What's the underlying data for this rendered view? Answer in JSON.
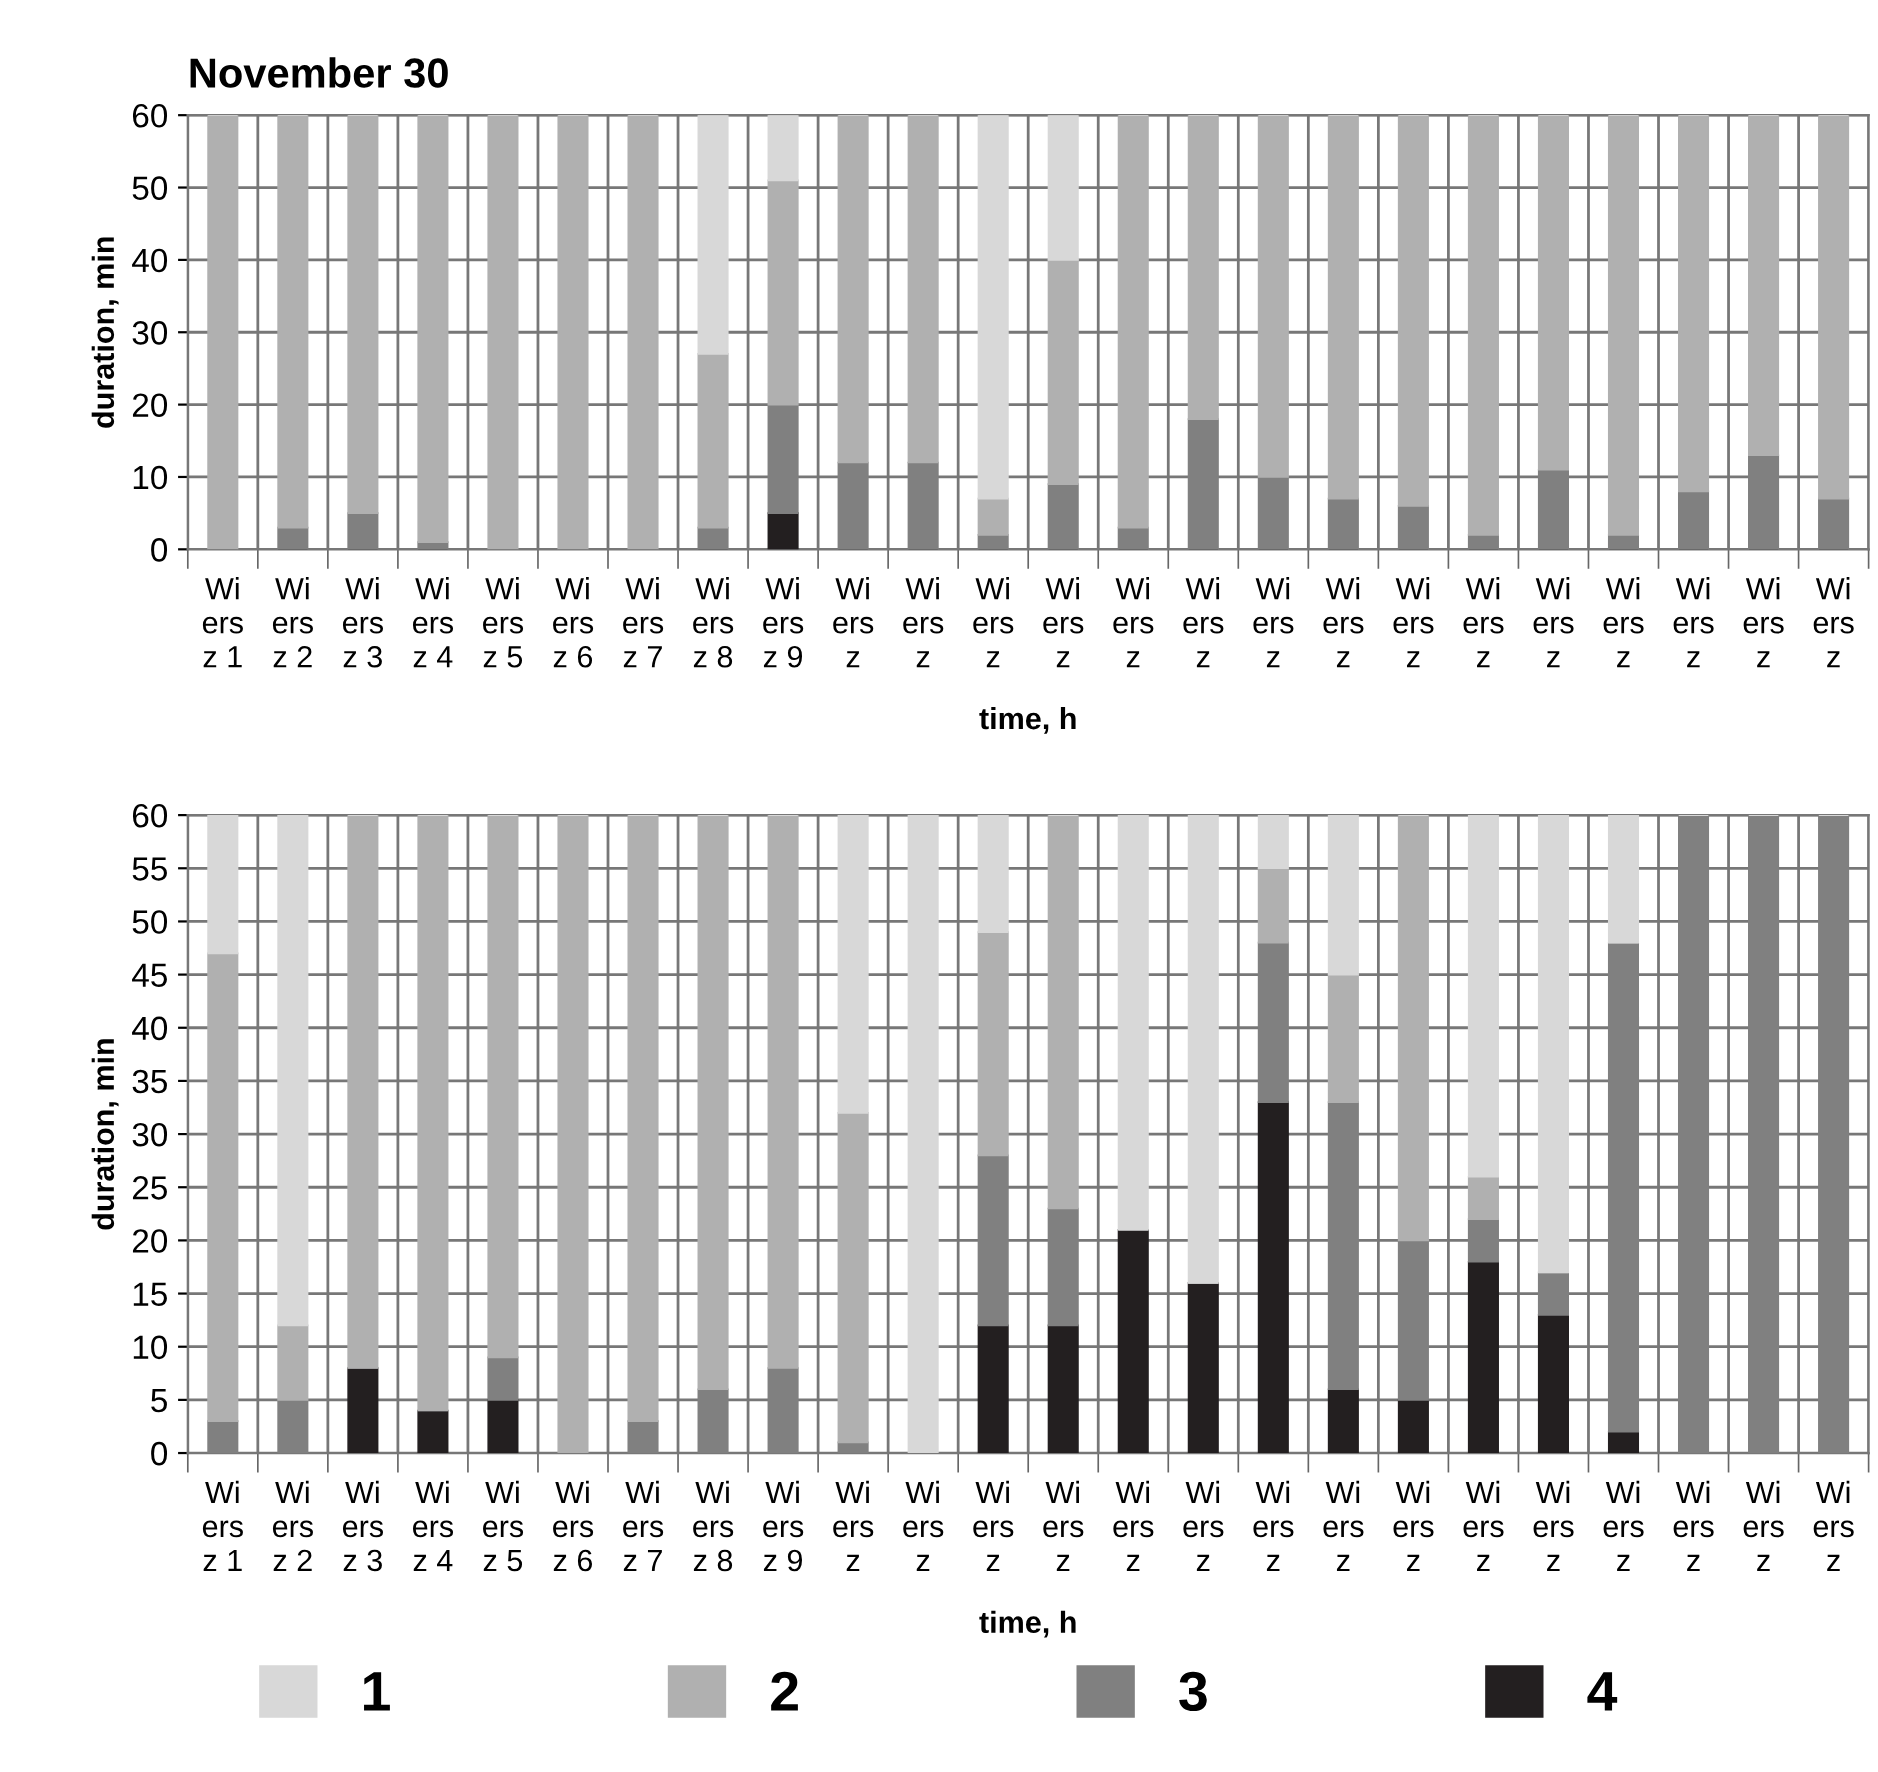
{
  "chart_data": [
    {
      "type": "bar",
      "title": "November 30",
      "xlabel": "time, h",
      "ylabel": "duration, min",
      "stacked": true,
      "grid": true,
      "legend": "bottom",
      "ylim": [
        0,
        60
      ],
      "yticks": [
        0,
        10,
        20,
        30,
        40,
        50,
        60
      ],
      "categories": [
        "Wi\ners\nz 1",
        "Wi\ners\nz 2",
        "Wi\ners\nz 3",
        "Wi\ners\nz 4",
        "Wi\ners\nz 5",
        "Wi\ners\nz 6",
        "Wi\ners\nz 7",
        "Wi\ners\nz 8",
        "Wi\ners\nz 9",
        "Wi\ners\nz",
        "Wi\ners\nz",
        "Wi\ners\nz",
        "Wi\ners\nz",
        "Wi\ners\nz",
        "Wi\ners\nz",
        "Wi\ners\nz",
        "Wi\ners\nz",
        "Wi\ners\nz",
        "Wi\ners\nz",
        "Wi\ners\nz",
        "Wi\ners\nz",
        "Wi\ners\nz",
        "Wi\ners\nz",
        "Wi\ners\nz"
      ],
      "series": [
        {
          "name": "4",
          "color": "#231f20",
          "values": [
            0,
            0,
            0,
            0,
            0,
            0,
            0,
            0,
            5,
            0,
            0,
            0,
            0,
            0,
            0,
            0,
            0,
            0,
            0,
            0,
            0,
            0,
            0,
            0
          ]
        },
        {
          "name": "3",
          "color": "#808080",
          "values": [
            0,
            3,
            5,
            1,
            0,
            0,
            0,
            3,
            15,
            12,
            12,
            2,
            9,
            3,
            18,
            10,
            7,
            6,
            2,
            11,
            2,
            8,
            13,
            7
          ]
        },
        {
          "name": "2",
          "color": "#b0b0b0",
          "values": [
            60,
            57,
            55,
            59,
            60,
            60,
            60,
            24,
            31,
            48,
            48,
            5,
            31,
            57,
            42,
            50,
            53,
            54,
            58,
            49,
            58,
            52,
            47,
            53
          ]
        },
        {
          "name": "1",
          "color": "#d8d8d8",
          "values": [
            0,
            0,
            0,
            0,
            0,
            0,
            0,
            33,
            9,
            0,
            0,
            53,
            20,
            0,
            0,
            0,
            0,
            0,
            0,
            0,
            0,
            0,
            0,
            0
          ]
        }
      ]
    },
    {
      "type": "bar",
      "xlabel": "time, h",
      "ylabel": "duration, min",
      "stacked": true,
      "grid": true,
      "legend": "bottom",
      "ylim": [
        0,
        60
      ],
      "yticks": [
        0,
        5,
        10,
        15,
        20,
        25,
        30,
        35,
        40,
        45,
        50,
        55,
        60
      ],
      "categories": [
        "Wi\ners\nz 1",
        "Wi\ners\nz 2",
        "Wi\ners\nz 3",
        "Wi\ners\nz 4",
        "Wi\ners\nz 5",
        "Wi\ners\nz 6",
        "Wi\ners\nz 7",
        "Wi\ners\nz 8",
        "Wi\ners\nz 9",
        "Wi\ners\nz",
        "Wi\ners\nz",
        "Wi\ners\nz",
        "Wi\ners\nz",
        "Wi\ners\nz",
        "Wi\ners\nz",
        "Wi\ners\nz",
        "Wi\ners\nz",
        "Wi\ners\nz",
        "Wi\ners\nz",
        "Wi\ners\nz",
        "Wi\ners\nz",
        "Wi\ners\nz",
        "Wi\ners\nz",
        "Wi\ners\nz"
      ],
      "series": [
        {
          "name": "4",
          "color": "#231f20",
          "values": [
            0,
            0,
            8,
            4,
            5,
            0,
            0,
            0,
            0,
            0,
            0,
            12,
            12,
            21,
            16,
            33,
            6,
            5,
            18,
            13,
            2,
            0,
            0,
            0
          ]
        },
        {
          "name": "3",
          "color": "#808080",
          "values": [
            3,
            5,
            0,
            0,
            4,
            0,
            3,
            6,
            8,
            1,
            0,
            16,
            11,
            0,
            0,
            15,
            27,
            15,
            4,
            4,
            46,
            60,
            60,
            60
          ]
        },
        {
          "name": "2",
          "color": "#b0b0b0",
          "values": [
            44,
            7,
            52,
            56,
            51,
            60,
            57,
            54,
            52,
            31,
            0,
            21,
            37,
            0,
            0,
            7,
            12,
            40,
            4,
            0,
            0,
            0,
            0,
            0
          ]
        },
        {
          "name": "1",
          "color": "#d8d8d8",
          "values": [
            13,
            48,
            0,
            0,
            0,
            0,
            0,
            0,
            0,
            28,
            60,
            11,
            0,
            39,
            44,
            5,
            15,
            0,
            34,
            43,
            12,
            0,
            0,
            0
          ]
        }
      ]
    }
  ]
}
